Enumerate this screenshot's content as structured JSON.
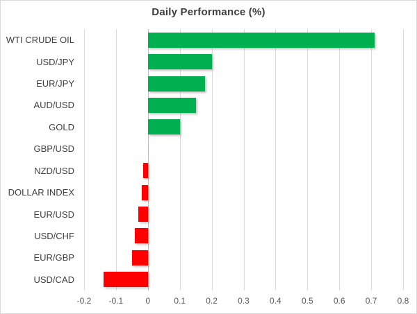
{
  "colors": {
    "positive": "#00B050",
    "negative": "#FF0000",
    "gridline": "#D9D9D9",
    "zero_line": "#BFBFBF",
    "title_text": "#404040",
    "category_text": "#404040",
    "tick_text": "#595959",
    "border": "#D9D9D9",
    "background": "#FFFFFF"
  },
  "chart_data": {
    "type": "bar",
    "orientation": "horizontal",
    "title": "Daily Performance (%)",
    "categories": [
      "WTI CRUDE OIL",
      "USD/JPY",
      "EUR/JPY",
      "AUD/USD",
      "GOLD",
      "GBP/USD",
      "NZD/USD",
      "DOLLAR INDEX",
      "EUR/USD",
      "USD/CHF",
      "EUR/GBP",
      "USD/CAD"
    ],
    "values": [
      0.71,
      0.2,
      0.18,
      0.15,
      0.1,
      0.0,
      -0.015,
      -0.02,
      -0.03,
      -0.04,
      -0.05,
      -0.14
    ],
    "xlabel": "",
    "ylabel": "",
    "xlim": [
      -0.2,
      0.8
    ],
    "x_ticks": [
      -0.2,
      -0.1,
      0,
      0.1,
      0.2,
      0.3,
      0.4,
      0.5,
      0.6,
      0.7,
      0.8
    ],
    "x_tick_labels": [
      "-0.2",
      "-0.1",
      "0",
      "0.1",
      "0.2",
      "0.3",
      "0.4",
      "0.5",
      "0.6",
      "0.7",
      "0.8"
    ],
    "grid": true,
    "legend": false
  }
}
